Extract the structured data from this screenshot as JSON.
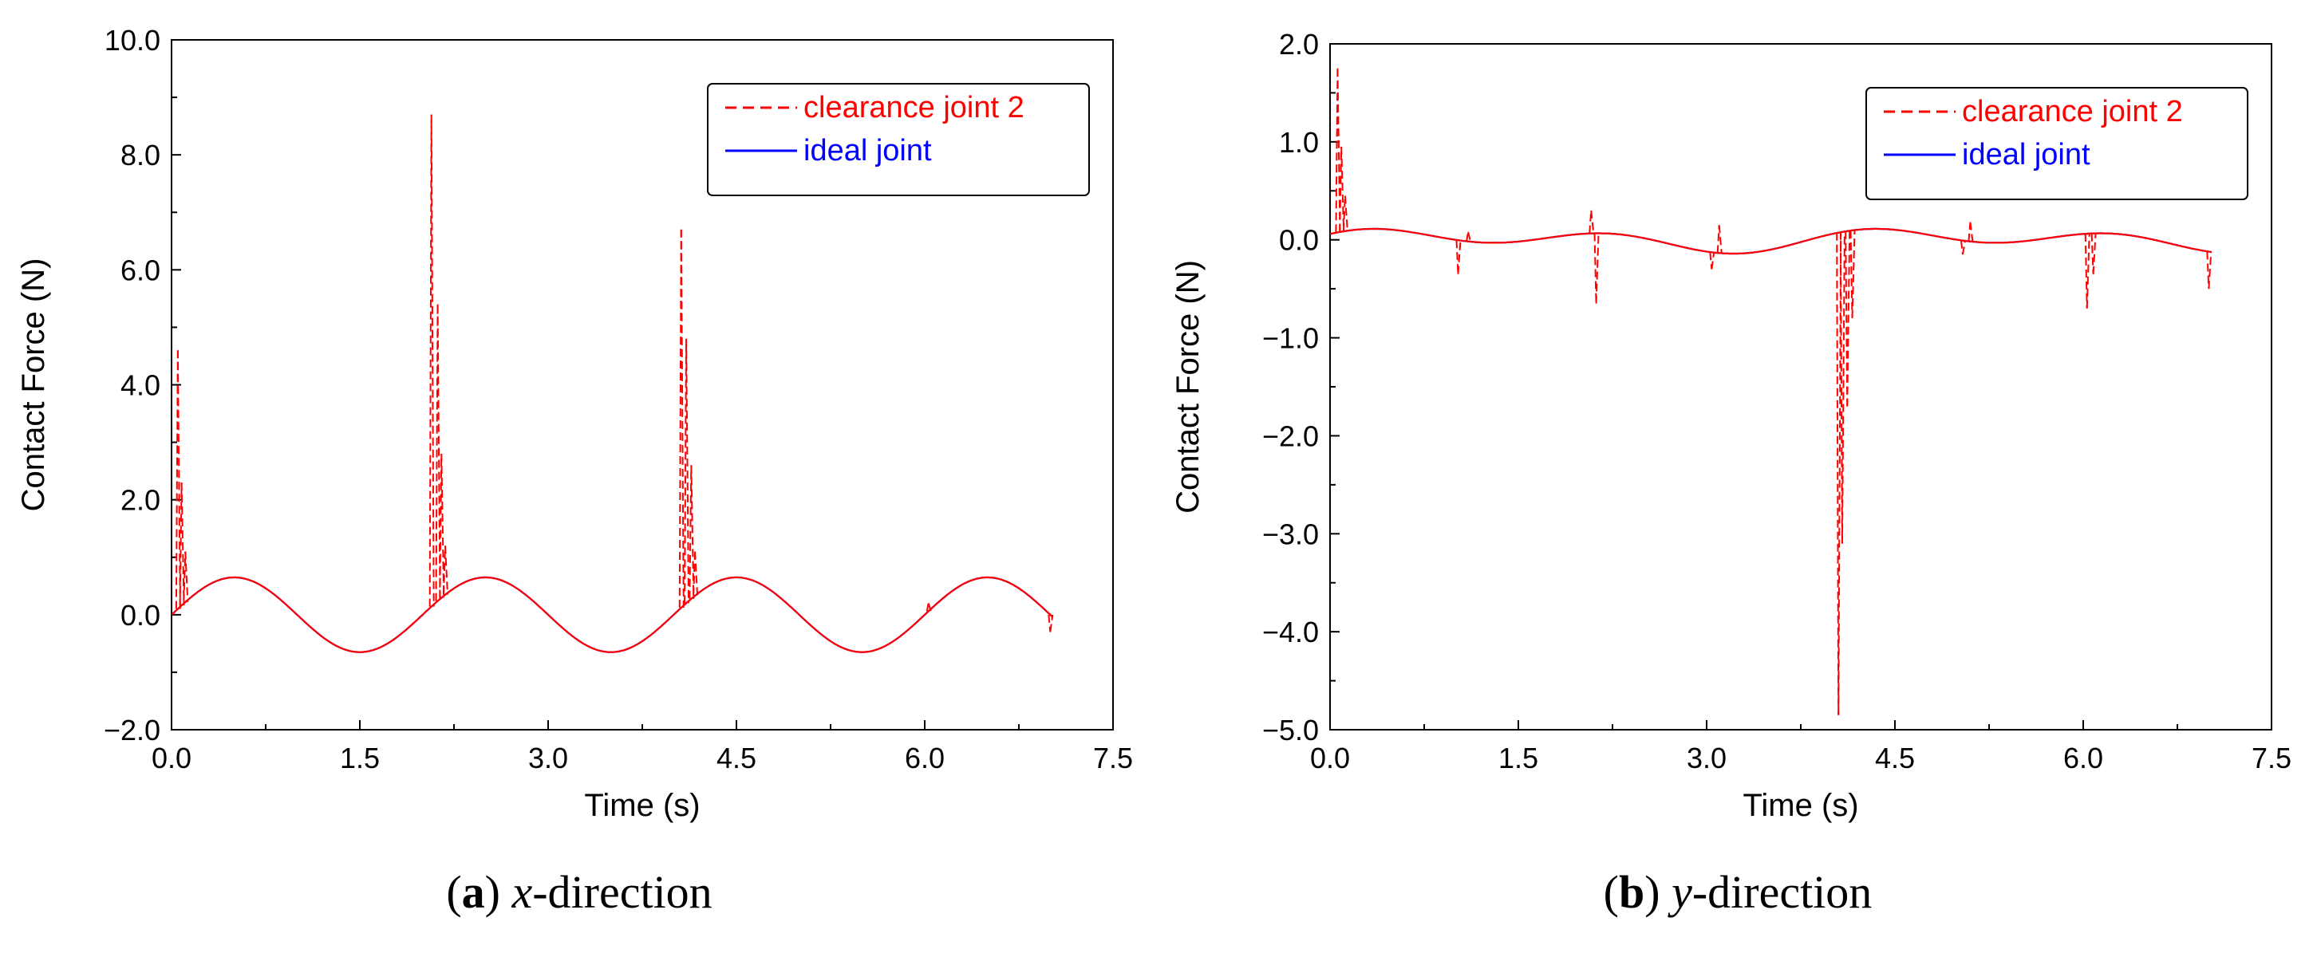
{
  "chart_data": [
    {
      "type": "line",
      "panel_label": "a",
      "caption_var": "x",
      "caption_rest": "-direction",
      "xlabel": "Time (s)",
      "ylabel": "Contact Force (N)",
      "xlim": [
        0.0,
        7.5
      ],
      "ylim": [
        -2.0,
        10.0
      ],
      "xticks": [
        "0.0",
        "1.5",
        "3.0",
        "4.5",
        "6.0",
        "7.5"
      ],
      "yticks": [
        "−2.0",
        "0.0",
        "2.0",
        "4.0",
        "6.0",
        "8.0",
        "10.0"
      ],
      "legend_position": "top-right",
      "colors": {
        "clearance": "#ff0000",
        "ideal": "#0000ff"
      },
      "series": [
        {
          "name": "clearance joint 2",
          "style": "dashed",
          "base": {
            "amplitude": 0.65,
            "period": 2.0,
            "phase": 0.0,
            "x_start": 0.0,
            "x_end": 7.02
          },
          "spikes": [
            {
              "x": 0.05,
              "y": 4.6
            },
            {
              "x": 0.08,
              "y": 2.3
            },
            {
              "x": 0.11,
              "y": 1.1
            },
            {
              "x": 2.07,
              "y": 8.7
            },
            {
              "x": 2.12,
              "y": 5.4
            },
            {
              "x": 2.15,
              "y": 2.8
            },
            {
              "x": 2.18,
              "y": 1.2
            },
            {
              "x": 4.06,
              "y": 6.7
            },
            {
              "x": 4.1,
              "y": 4.8
            },
            {
              "x": 4.14,
              "y": 2.6
            },
            {
              "x": 4.17,
              "y": 1.1
            },
            {
              "x": 6.03,
              "y": 0.2
            },
            {
              "x": 7.0,
              "y": -0.3
            }
          ]
        },
        {
          "name": "ideal joint",
          "style": "solid",
          "base": {
            "amplitude": 0.65,
            "period": 2.0,
            "phase": 0.0,
            "x_start": 0.0,
            "x_end": 7.02
          },
          "spikes": []
        }
      ]
    },
    {
      "type": "line",
      "panel_label": "b",
      "caption_var": "y",
      "caption_rest": "-direction",
      "xlabel": "Time (s)",
      "ylabel": "Contact Force (N)",
      "xlim": [
        0.0,
        7.5
      ],
      "ylim": [
        -5.0,
        2.0
      ],
      "xticks": [
        "0.0",
        "1.5",
        "3.0",
        "4.5",
        "6.0",
        "7.5"
      ],
      "yticks": [
        "−5.0",
        "−4.0",
        "−3.0",
        "−2.0",
        "−1.0",
        "0.0",
        "1.0",
        "2.0"
      ],
      "legend_position": "top-right",
      "colors": {
        "clearance": "#ff0000",
        "ideal": "#0000ff"
      },
      "series": [
        {
          "name": "clearance joint 2",
          "style": "dashed",
          "base": {
            "amplitude": 0.12,
            "period": 2.0,
            "phase": 0.0,
            "drift_amplitude": 0.06,
            "drift_period": 4.0,
            "x_start": 0.0,
            "x_end": 7.02
          },
          "spikes": [
            {
              "x": 0.06,
              "y": 1.75
            },
            {
              "x": 0.09,
              "y": 0.95
            },
            {
              "x": 0.12,
              "y": 0.45
            },
            {
              "x": 1.02,
              "y": -0.35
            },
            {
              "x": 1.1,
              "y": 0.08
            },
            {
              "x": 2.08,
              "y": 0.3
            },
            {
              "x": 2.12,
              "y": -0.65
            },
            {
              "x": 3.04,
              "y": -0.3
            },
            {
              "x": 3.1,
              "y": 0.15
            },
            {
              "x": 4.05,
              "y": -4.85
            },
            {
              "x": 4.08,
              "y": -3.1
            },
            {
              "x": 4.12,
              "y": -1.7
            },
            {
              "x": 4.16,
              "y": -0.8
            },
            {
              "x": 5.04,
              "y": -0.15
            },
            {
              "x": 5.1,
              "y": 0.18
            },
            {
              "x": 6.03,
              "y": -0.7
            },
            {
              "x": 6.08,
              "y": -0.35
            },
            {
              "x": 7.0,
              "y": -0.5
            }
          ]
        },
        {
          "name": "ideal joint",
          "style": "solid",
          "base": {
            "amplitude": 0.12,
            "period": 2.0,
            "phase": 0.0,
            "drift_amplitude": 0.06,
            "drift_period": 4.0,
            "x_start": 0.0,
            "x_end": 7.02
          },
          "spikes": []
        }
      ]
    }
  ]
}
